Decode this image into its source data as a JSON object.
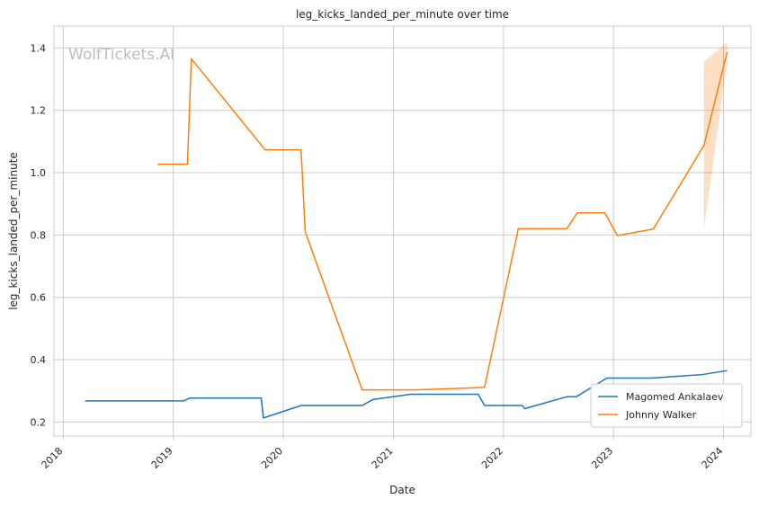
{
  "chart_data": {
    "type": "line",
    "title": "leg_kicks_landed_per_minute over time",
    "xlabel": "Date",
    "ylabel": "leg_kicks_landed_per_minute",
    "watermark": "WolfTickets.AI",
    "xlim": [
      "2017-12-01",
      "2024-04-01"
    ],
    "ylim": [
      0.155,
      1.47
    ],
    "x_ticks": [
      "2018-01-01",
      "2019-01-01",
      "2020-01-01",
      "2021-01-01",
      "2022-01-01",
      "2023-01-01",
      "2024-01-01"
    ],
    "x_tick_labels": [
      "2018",
      "2019",
      "2020",
      "2021",
      "2022",
      "2023",
      "2024"
    ],
    "y_ticks": [
      0.2,
      0.4,
      0.6,
      0.8,
      1.0,
      1.2,
      1.4
    ],
    "y_tick_labels": [
      "0.2",
      "0.4",
      "0.6",
      "0.8",
      "1.0",
      "1.2",
      "1.4"
    ],
    "grid": true,
    "legend_position": "bottom-right",
    "series": [
      {
        "name": "Magomed Ankalaev",
        "color": "#1f77b4",
        "points": [
          [
            "2018-03-15",
            0.268
          ],
          [
            "2019-02-05",
            0.268
          ],
          [
            "2019-02-25",
            0.277
          ],
          [
            "2019-10-20",
            0.277
          ],
          [
            "2019-10-27",
            0.213
          ],
          [
            "2020-02-29",
            0.253
          ],
          [
            "2020-09-19",
            0.253
          ],
          [
            "2020-10-24",
            0.272
          ],
          [
            "2021-02-27",
            0.289
          ],
          [
            "2021-10-09",
            0.289
          ],
          [
            "2021-10-30",
            0.253
          ],
          [
            "2022-03-05",
            0.253
          ],
          [
            "2022-03-12",
            0.243
          ],
          [
            "2022-07-30",
            0.281
          ],
          [
            "2022-08-30",
            0.281
          ],
          [
            "2022-12-10",
            0.341
          ],
          [
            "2023-05-06",
            0.341
          ],
          [
            "2023-10-21",
            0.352
          ],
          [
            "2024-01-13",
            0.365
          ]
        ]
      },
      {
        "name": "Johnny Walker",
        "color": "#ff7f0e",
        "points": [
          [
            "2018-11-10",
            1.027
          ],
          [
            "2019-02-17",
            1.027
          ],
          [
            "2019-03-02",
            1.365
          ],
          [
            "2019-11-02",
            1.073
          ],
          [
            "2020-02-29",
            1.073
          ],
          [
            "2020-03-14",
            0.81
          ],
          [
            "2020-09-19",
            0.303
          ],
          [
            "2021-03-13",
            0.303
          ],
          [
            "2021-10-30",
            0.311
          ],
          [
            "2022-02-19",
            0.82
          ],
          [
            "2022-07-30",
            0.82
          ],
          [
            "2022-09-03",
            0.871
          ],
          [
            "2022-12-03",
            0.871
          ],
          [
            "2023-01-14",
            0.798
          ],
          [
            "2023-05-13",
            0.819
          ],
          [
            "2023-10-28",
            1.087
          ],
          [
            "2024-01-13",
            1.386
          ]
        ],
        "confidence_band": [
          [
            "2023-10-28",
            0.82,
            1.355
          ],
          [
            "2024-01-13",
            1.355,
            1.418
          ]
        ]
      }
    ]
  }
}
